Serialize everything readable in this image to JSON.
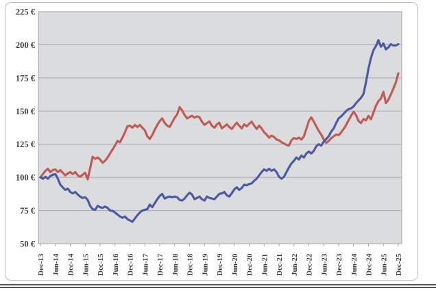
{
  "chart_data": {
    "type": "line",
    "title": "",
    "xlabel": "",
    "ylabel": "",
    "y_axis": {
      "min": 50,
      "max": 225,
      "step": 25,
      "suffix": " €"
    },
    "y_tick_labels": [
      "50 €",
      "75 €",
      "100 €",
      "125 €",
      "150 €",
      "175 €",
      "200 €",
      "225 €"
    ],
    "x_tick_labels": [
      "Dec-13",
      "Jun-14",
      "Dec-14",
      "Jun-15",
      "Dec-15",
      "Jun-16",
      "Dec-16",
      "Jun-17",
      "Dec-17",
      "Jun-18",
      "Dec-18",
      "Jun-19",
      "Dec-19",
      "Jun-20",
      "Dec-20",
      "Jun-21",
      "Dec-21",
      "Jun-22",
      "Dec-22",
      "Jun-23",
      "Dec-23",
      "Jun-24",
      "Dec-24",
      "Jun-25",
      "Dec-25"
    ],
    "x_unit": "months, monthly points from Dec-13 to Dec-25",
    "grid": true,
    "legend": "none",
    "plot_bg_color": "#dbdcde",
    "grid_color": "#a6a6a6",
    "axis_text_color": "#3f3f3f",
    "series": [
      {
        "name": "red-series",
        "color": "#c25b55",
        "values": [
          100,
          102.5,
          105,
          106.5,
          104,
          105.5,
          106,
          104,
          105.5,
          103.5,
          101.5,
          103,
          104,
          102.5,
          104,
          101.5,
          100.5,
          102,
          103.5,
          98.5,
          107,
          115.5,
          114,
          115,
          113.5,
          111,
          112.5,
          115,
          118,
          121,
          124,
          127.5,
          126.5,
          130,
          134,
          138.5,
          139,
          137.5,
          139.5,
          138,
          139.5,
          137.5,
          135.5,
          131,
          129,
          132,
          136,
          139.5,
          142.5,
          144.5,
          141,
          139,
          138,
          141.5,
          145,
          147.5,
          153,
          150.5,
          147,
          144.5,
          145.5,
          146.5,
          145,
          146,
          145.3,
          142,
          139.6,
          141,
          142.2,
          139,
          137.5,
          140,
          141.2,
          137,
          138.5,
          140,
          138,
          136.5,
          139,
          141.2,
          139,
          137,
          140,
          138.5,
          140.5,
          142,
          139,
          136.5,
          139,
          137,
          134,
          132.3,
          130,
          131.5,
          130.5,
          128.5,
          128,
          126.5,
          125.5,
          124.5,
          124,
          128,
          129.7,
          129,
          130,
          128.5,
          131,
          136.5,
          142.5,
          145.3,
          142,
          138.5,
          135,
          132.3,
          128.5,
          126,
          127.5,
          129.5,
          131,
          132.3,
          131.8,
          134,
          136.5,
          139.5,
          143,
          146.5,
          149.5,
          147,
          142.5,
          141,
          144,
          143,
          146.4,
          143.8,
          149,
          154,
          157.5,
          159.5,
          164.5,
          156,
          158.5,
          162.5,
          167,
          171.5,
          178.5
        ]
      },
      {
        "name": "blue-series",
        "color": "#4d59a5",
        "values": [
          100,
          99,
          100.5,
          99,
          101,
          102,
          102.5,
          99,
          94.5,
          92.5,
          90.5,
          91.5,
          89,
          88,
          89,
          87,
          85.5,
          84.5,
          85,
          83,
          78.5,
          76,
          75.5,
          78.5,
          77.5,
          77,
          78,
          77,
          75,
          74.8,
          73.5,
          72,
          70.5,
          69.5,
          70.5,
          68.5,
          67.5,
          66.5,
          69,
          71.5,
          73.5,
          75,
          75.5,
          76,
          79.5,
          77.5,
          80.5,
          83.5,
          86,
          87.5,
          84,
          85,
          85.5,
          85,
          85.5,
          85,
          83,
          82.5,
          84,
          86.5,
          88.5,
          87,
          83.5,
          84.5,
          85.5,
          83.5,
          82.5,
          85.5,
          84.5,
          84,
          83.5,
          85.5,
          87.5,
          88,
          89,
          86.5,
          85.5,
          88,
          91,
          92.5,
          90.5,
          92,
          94.5,
          94,
          95,
          95.5,
          97.5,
          99,
          101.5,
          104,
          106,
          105,
          106.5,
          105,
          106,
          104,
          100.5,
          99,
          100.5,
          104,
          107.5,
          110.5,
          112.5,
          115,
          113.5,
          116.5,
          115,
          118,
          119.5,
          118,
          120,
          123.5,
          125,
          124,
          127,
          129,
          131,
          134.5,
          137,
          141,
          144.5,
          146,
          148,
          150,
          151.5,
          152,
          153.5,
          156,
          158,
          160,
          163,
          172,
          182,
          190,
          196,
          199,
          203.5,
          198.5,
          201,
          196.5,
          198,
          200.5,
          199.5,
          199.5,
          200.5
        ]
      }
    ]
  }
}
